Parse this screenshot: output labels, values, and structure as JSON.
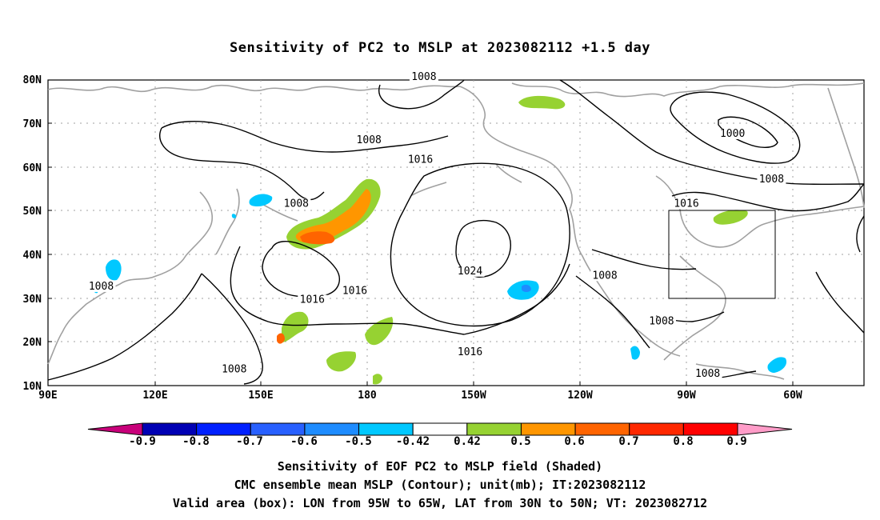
{
  "title": "Sensitivity of PC2 to MSLP at 2023082112 +1.5 day",
  "map": {
    "lon_labels": [
      "90E",
      "120E",
      "150E",
      "180",
      "150W",
      "120W",
      "90W",
      "60W"
    ],
    "lat_labels": [
      "80N",
      "70N",
      "60N",
      "50N",
      "40N",
      "30N",
      "20N",
      "10N"
    ],
    "contour_labels": [
      {
        "text": "1008",
        "lon": 196,
        "lat": 80
      },
      {
        "text": "1008",
        "lon": 180.5,
        "lat": 65.5
      },
      {
        "text": "1016",
        "lon": 195,
        "lat": 61
      },
      {
        "text": "1000",
        "lon": 283,
        "lat": 67
      },
      {
        "text": "1008",
        "lon": 294,
        "lat": 56.5
      },
      {
        "text": "1016",
        "lon": 270,
        "lat": 51
      },
      {
        "text": "1008",
        "lon": 160,
        "lat": 51
      },
      {
        "text": "1008",
        "lon": 105,
        "lat": 32
      },
      {
        "text": "1016",
        "lon": 176.5,
        "lat": 31
      },
      {
        "text": "1016",
        "lon": 164.5,
        "lat": 29
      },
      {
        "text": "1024",
        "lon": 209,
        "lat": 35.5
      },
      {
        "text": "1016",
        "lon": 209,
        "lat": 17
      },
      {
        "text": "1008",
        "lon": 247,
        "lat": 34.5
      },
      {
        "text": "1008",
        "lon": 263,
        "lat": 24
      },
      {
        "text": "1008",
        "lon": 142.5,
        "lat": 13
      },
      {
        "text": "1008",
        "lon": 276,
        "lat": 12
      }
    ],
    "valid_box": {
      "lon_min": 265,
      "lon_max": 295,
      "lat_min": 30,
      "lat_max": 50
    },
    "colors": {
      "ocean_coast": "#a0a0a0",
      "contour": "#000000",
      "grid": "#a0a0a0"
    }
  },
  "colorbar": {
    "labels": [
      "-0.9",
      "-0.8",
      "-0.7",
      "-0.6",
      "-0.5",
      "-0.42",
      "0.42",
      "0.5",
      "0.6",
      "0.7",
      "0.8",
      "0.9"
    ],
    "colors": [
      "#c8007a",
      "#0000b4",
      "#0020ff",
      "#2860ff",
      "#1e8cff",
      "#00c8ff",
      "#ffffff",
      "#96d232",
      "#ff9600",
      "#ff6400",
      "#ff2800",
      "#ff0000",
      "#ff9cc8"
    ]
  },
  "captions": {
    "line1": "Sensitivity of EOF PC2 to MSLP field (Shaded)",
    "line2": "CMC ensemble mean MSLP (Contour); unit(mb); IT:2023082112",
    "line3": "Valid area (box): LON from 95W to 65W, LAT from 30N to 50N; VT: 2023082712"
  }
}
